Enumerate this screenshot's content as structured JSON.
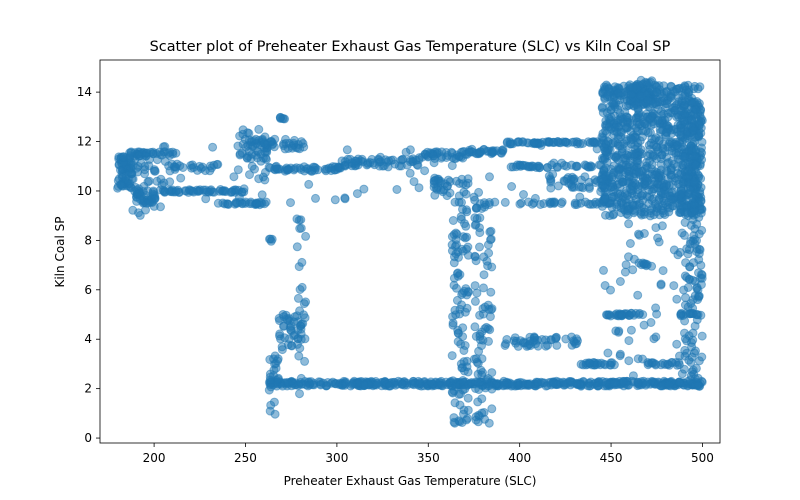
{
  "chart_data": {
    "type": "scatter",
    "title": "Scatter plot of Preheater Exhaust Gas Temperature (SLC) vs Kiln Coal SP",
    "xlabel": "Preheater Exhaust Gas Temperature (SLC)",
    "ylabel": "Kiln Coal SP",
    "xlim": [
      170.4,
      509.6
    ],
    "ylim": [
      -0.2,
      15.3
    ],
    "xticks": [
      200,
      250,
      300,
      350,
      400,
      450,
      500
    ],
    "yticks": [
      0,
      2,
      4,
      6,
      8,
      10,
      12,
      14
    ],
    "grid": false,
    "legend": "none",
    "marker_color": "#1f77b4",
    "marker_alpha": 0.5,
    "clusters": [
      {
        "x_min": 180,
        "x_max": 188,
        "y_min": 10,
        "y_max": 11.4,
        "n": 70,
        "kind": "box"
      },
      {
        "x_min": 186,
        "x_max": 212,
        "y_min": 11.4,
        "y_max": 11.6,
        "n": 40,
        "kind": "box"
      },
      {
        "x_min": 188,
        "x_max": 205,
        "y_min": 9.0,
        "y_max": 11.3,
        "n": 45,
        "kind": "box"
      },
      {
        "x_min": 188,
        "x_max": 202,
        "y_min": 9.5,
        "y_max": 10.0,
        "n": 25,
        "kind": "box"
      },
      {
        "x_min": 205,
        "x_max": 250,
        "y_min": 10.0,
        "y_max": 10.0,
        "n": 55,
        "kind": "hline"
      },
      {
        "x_min": 205,
        "x_max": 235,
        "y_min": 10.8,
        "y_max": 11.1,
        "n": 25,
        "kind": "box"
      },
      {
        "x_min": 235,
        "x_max": 262,
        "y_min": 9.5,
        "y_max": 9.5,
        "n": 30,
        "kind": "hline"
      },
      {
        "x_min": 245,
        "x_max": 262,
        "y_min": 10.4,
        "y_max": 12.5,
        "n": 45,
        "kind": "box"
      },
      {
        "x_min": 250,
        "x_max": 282,
        "y_min": 11.7,
        "y_max": 12.1,
        "n": 40,
        "kind": "box"
      },
      {
        "x_min": 262,
        "x_max": 302,
        "y_min": 10.8,
        "y_max": 11.0,
        "n": 50,
        "kind": "box"
      },
      {
        "x_min": 302,
        "x_max": 345,
        "y_min": 11.0,
        "y_max": 11.3,
        "n": 55,
        "kind": "box"
      },
      {
        "x_min": 345,
        "x_max": 372,
        "y_min": 11.3,
        "y_max": 11.6,
        "n": 40,
        "kind": "box"
      },
      {
        "x_min": 372,
        "x_max": 392,
        "y_min": 11.5,
        "y_max": 11.7,
        "n": 30,
        "kind": "box"
      },
      {
        "x_min": 392,
        "x_max": 445,
        "y_min": 11.9,
        "y_max": 12.0,
        "n": 60,
        "kind": "box"
      },
      {
        "x_min": 395,
        "x_max": 445,
        "y_min": 11.0,
        "y_max": 11.0,
        "n": 40,
        "kind": "hline"
      },
      {
        "x_min": 380,
        "x_max": 450,
        "y_min": 9.5,
        "y_max": 9.5,
        "n": 35,
        "kind": "hline"
      },
      {
        "x_min": 415,
        "x_max": 450,
        "y_min": 10.1,
        "y_max": 10.6,
        "n": 35,
        "kind": "box"
      },
      {
        "x_min": 445,
        "x_max": 500,
        "y_min": 9.0,
        "y_max": 14.3,
        "n": 900,
        "kind": "box"
      },
      {
        "x_min": 460,
        "x_max": 475,
        "y_min": 13.5,
        "y_max": 14.5,
        "n": 60,
        "kind": "box"
      },
      {
        "x_min": 268,
        "x_max": 272,
        "y_min": 12.9,
        "y_max": 13.0,
        "n": 6,
        "kind": "box"
      },
      {
        "x_min": 263,
        "x_max": 500,
        "y_min": 2.1,
        "y_max": 2.3,
        "n": 500,
        "kind": "box"
      },
      {
        "x_min": 263,
        "x_max": 268,
        "y_min": 0.8,
        "y_max": 3.5,
        "n": 25,
        "kind": "vline"
      },
      {
        "x_min": 268,
        "x_max": 282,
        "y_min": 3.5,
        "y_max": 5.0,
        "n": 35,
        "kind": "box"
      },
      {
        "x_min": 278,
        "x_max": 283,
        "y_min": 1.0,
        "y_max": 9.0,
        "n": 30,
        "kind": "vline"
      },
      {
        "x_min": 262,
        "x_max": 265,
        "y_min": 8.0,
        "y_max": 8.0,
        "n": 4,
        "kind": "hline"
      },
      {
        "x_min": 363,
        "x_max": 372,
        "y_min": 0.5,
        "y_max": 10.5,
        "n": 110,
        "kind": "vline"
      },
      {
        "x_min": 375,
        "x_max": 385,
        "y_min": 0.6,
        "y_max": 10.0,
        "n": 90,
        "kind": "vline"
      },
      {
        "x_min": 353,
        "x_max": 362,
        "y_min": 9.8,
        "y_max": 10.6,
        "n": 25,
        "kind": "box"
      },
      {
        "x_min": 392,
        "x_max": 432,
        "y_min": 3.7,
        "y_max": 4.1,
        "n": 45,
        "kind": "box"
      },
      {
        "x_min": 432,
        "x_max": 452,
        "y_min": 3.0,
        "y_max": 3.0,
        "n": 25,
        "kind": "hline"
      },
      {
        "x_min": 445,
        "x_max": 468,
        "y_min": 5.0,
        "y_max": 5.0,
        "n": 30,
        "kind": "hline"
      },
      {
        "x_min": 488,
        "x_max": 500,
        "y_min": 5.0,
        "y_max": 5.0,
        "n": 15,
        "kind": "hline"
      },
      {
        "x_min": 470,
        "x_max": 488,
        "y_min": 3.0,
        "y_max": 3.0,
        "n": 20,
        "kind": "hline"
      },
      {
        "x_min": 445,
        "x_max": 500,
        "y_min": 2.0,
        "y_max": 9.0,
        "n": 70,
        "kind": "box"
      },
      {
        "x_min": 490,
        "x_max": 500,
        "y_min": 2.0,
        "y_max": 9.0,
        "n": 80,
        "kind": "box"
      },
      {
        "x_min": 488,
        "x_max": 500,
        "y_min": 9.0,
        "y_max": 13.7,
        "n": 120,
        "kind": "box"
      },
      {
        "x_min": 465,
        "x_max": 470,
        "y_min": 6.9,
        "y_max": 7.1,
        "n": 8,
        "kind": "box"
      },
      {
        "x_min": 200,
        "x_max": 450,
        "y_min": 9.5,
        "y_max": 12.0,
        "n": 60,
        "kind": "box"
      }
    ]
  }
}
